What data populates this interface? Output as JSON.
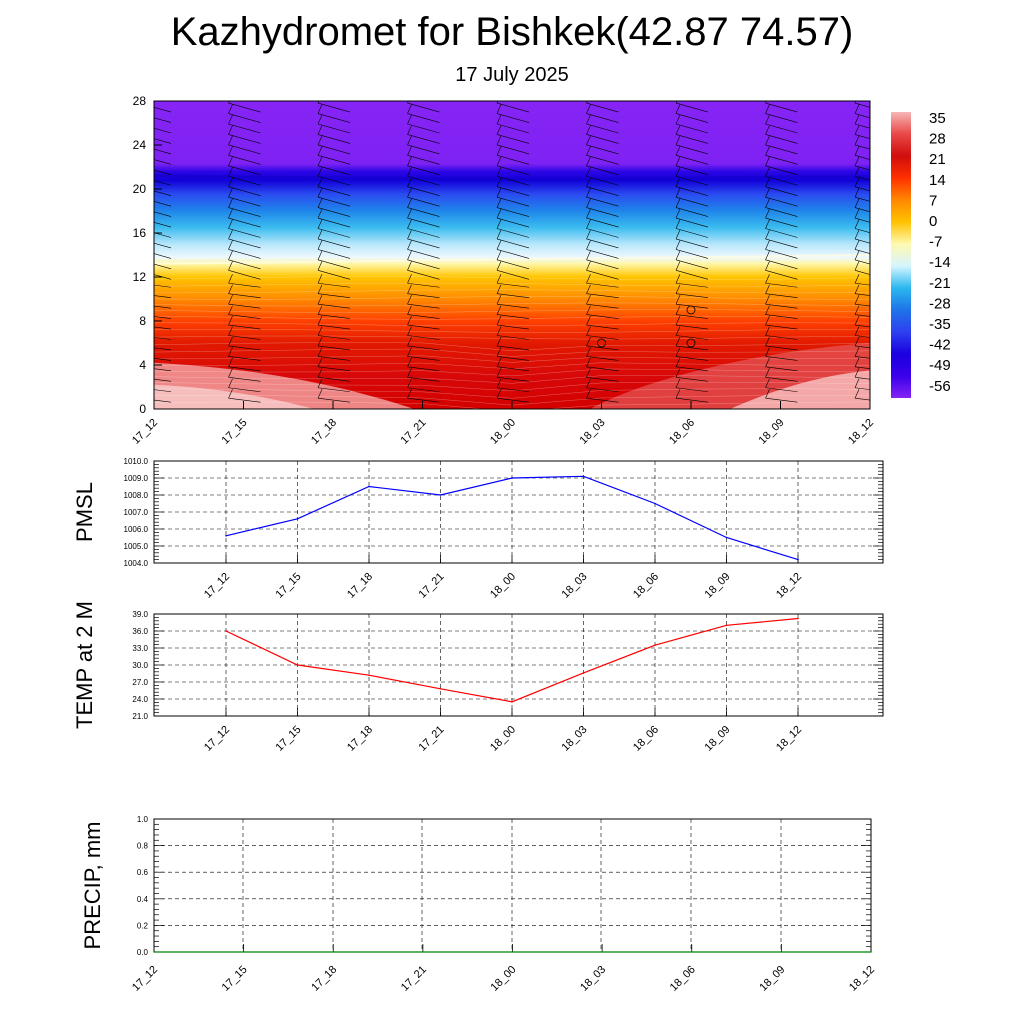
{
  "header": {
    "title": "Kazhydromet for Bishkek(42.87 74.57)",
    "subtitle": "17 July 2025"
  },
  "chart_data": [
    {
      "type": "heatmap",
      "name": "vertical-temperature-section",
      "categories": [
        "17_12",
        "17_15",
        "17_18",
        "17_21",
        "18_00",
        "18_03",
        "18_06",
        "18_09",
        "18_12"
      ],
      "yticks": [
        "0",
        "4",
        "8",
        "12",
        "16",
        "20",
        "24",
        "28"
      ],
      "ylim": [
        0,
        28
      ],
      "colorbar": {
        "labels": [
          "35",
          "28",
          "21",
          "14",
          "7",
          "0",
          "-7",
          "-14",
          "-21",
          "-28",
          "-35",
          "-42",
          "-49",
          "-56"
        ],
        "colors": [
          "#f6b7b7",
          "#e94848",
          "#d10d0d",
          "#ff3000",
          "#ff8800",
          "#ffc200",
          "#fff9b0",
          "#d6f5ff",
          "#2ab8ef",
          "#1f73e8",
          "#2e40f0",
          "#1a00e0",
          "#3a00ea",
          "#8624f5"
        ]
      },
      "freezing_level_km": [
        13.2,
        13.3,
        13.4,
        13.5,
        13.6,
        13.7,
        13.8,
        13.9,
        14.0
      ],
      "tropopause_km": [
        21.2,
        21.1,
        21.0,
        21.0,
        20.9,
        20.9,
        21.0,
        21.1,
        21.1
      ]
    },
    {
      "type": "line",
      "name": "pmsl",
      "ylabel": "PMSL",
      "categories": [
        "17_12",
        "17_15",
        "17_18",
        "17_21",
        "18_00",
        "18_03",
        "18_06",
        "18_09",
        "18_12"
      ],
      "values": [
        1005.6,
        1006.6,
        1008.5,
        1008.0,
        1009.0,
        1009.1,
        1007.5,
        1005.5,
        1004.2
      ],
      "ylim": [
        1004.0,
        1010.0
      ],
      "yticks": [
        "1004.0",
        "1005.0",
        "1006.0",
        "1007.0",
        "1008.0",
        "1009.0",
        "1010.0"
      ],
      "color": "#0000ff"
    },
    {
      "type": "line",
      "name": "temp-2m",
      "ylabel": "TEMP at 2 M",
      "categories": [
        "17_12",
        "17_15",
        "17_18",
        "17_21",
        "18_00",
        "18_03",
        "18_06",
        "18_09",
        "18_12"
      ],
      "values": [
        36.0,
        30.0,
        28.2,
        25.8,
        23.5,
        28.6,
        33.5,
        37.0,
        38.2
      ],
      "ylim": [
        21.0,
        39.0
      ],
      "yticks": [
        "21.0",
        "24.0",
        "27.0",
        "30.0",
        "33.0",
        "36.0",
        "39.0"
      ],
      "color": "#ff0000"
    },
    {
      "type": "line",
      "name": "precip",
      "ylabel": "PRECIP, mm",
      "categories": [
        "17_12",
        "17_15",
        "17_18",
        "17_21",
        "18_00",
        "18_03",
        "18_06",
        "18_09",
        "18_12"
      ],
      "values": [
        0,
        0,
        0,
        0,
        0,
        0,
        0,
        0,
        0
      ],
      "ylim": [
        0.0,
        1.0
      ],
      "yticks": [
        "0.0",
        "0.2",
        "0.4",
        "0.6",
        "0.8",
        "1.0"
      ],
      "color": "#008000"
    }
  ]
}
